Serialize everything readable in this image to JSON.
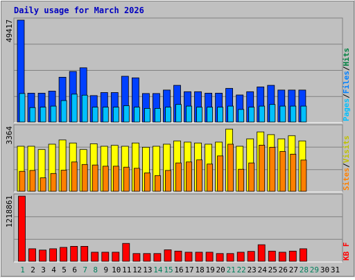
{
  "chart_data": {
    "type": "bar",
    "title": "Daily usage for March 2026",
    "days": [
      1,
      2,
      3,
      4,
      5,
      6,
      7,
      8,
      9,
      10,
      11,
      12,
      13,
      14,
      15,
      16,
      17,
      18,
      19,
      20,
      21,
      22,
      23,
      24,
      25,
      26,
      27,
      28,
      29,
      30,
      31
    ],
    "weekend_days": [
      1,
      7,
      8,
      14,
      15,
      21,
      22,
      28,
      29
    ],
    "colors": {
      "hits": "#008040",
      "files": "#0080ff",
      "pages": "#00c0ff",
      "visits": "#ffff00",
      "sites": "#ff8000",
      "kbytes": "#ff0000",
      "hits_bar": "#0040ff",
      "files_bar": "#0040ff",
      "title": "#0000c0",
      "panel": "#c0c0c0",
      "weekday_label": "#000000",
      "weekend_label": "#00805c"
    },
    "panels": [
      {
        "id": "hits-files-pages",
        "max_label": "49417",
        "ymax": 49417,
        "legend": [
          {
            "text": "Hits",
            "color": "#008040"
          },
          {
            "text": "/",
            "color": "#000000"
          },
          {
            "text": "Files",
            "color": "#0080ff"
          },
          {
            "text": "/",
            "color": "#000000"
          },
          {
            "text": "Pages",
            "color": "#00c0ff"
          }
        ],
        "series": [
          {
            "name": "Hits",
            "color": "#0040ff",
            "values": [
              49417,
              14000,
              14000,
              15000,
              21700,
              24500,
              26300,
              12800,
              14300,
              14300,
              22200,
              21400,
              13800,
              13800,
              15500,
              17800,
              14700,
              14700,
              14000,
              14000,
              16300,
              13100,
              14700,
              17000,
              17800,
              15500,
              15500,
              15500,
              0,
              0,
              0
            ]
          },
          {
            "name": "Files",
            "color": "#0040ff",
            "values": [
              0,
              0,
              0,
              0,
              0,
              0,
              0,
              0,
              0,
              0,
              0,
              0,
              0,
              0,
              0,
              0,
              0,
              0,
              0,
              0,
              0,
              0,
              0,
              0,
              0,
              0,
              0,
              0,
              0,
              0,
              0
            ]
          },
          {
            "name": "Pages",
            "color": "#00c0ff",
            "values": [
              13800,
              7000,
              7200,
              7700,
              10400,
              13500,
              13000,
              7200,
              7200,
              7200,
              7900,
              7200,
              6600,
              6600,
              7200,
              8500,
              7700,
              7200,
              7200,
              7200,
              7700,
              6100,
              7200,
              7700,
              8500,
              7700,
              7700,
              7700,
              0,
              0,
              0
            ]
          }
        ]
      },
      {
        "id": "visits-sites",
        "max_label": "3364",
        "ymax": 3364,
        "legend": [
          {
            "text": "Visits",
            "color": "#c0c000"
          },
          {
            "text": "/",
            "color": "#000000"
          },
          {
            "text": "Sites",
            "color": "#ff8000"
          }
        ],
        "series": [
          {
            "name": "Visits",
            "color": "#ffff00",
            "values": [
              2350,
              2350,
              2180,
              2460,
              2680,
              2520,
              2180,
              2480,
              2350,
              2400,
              2350,
              2520,
              2300,
              2350,
              2460,
              2630,
              2570,
              2520,
              2460,
              2570,
              3250,
              2350,
              2740,
              3100,
              2960,
              2740,
              2900,
              2630,
              0,
              0,
              0
            ]
          },
          {
            "name": "Sites",
            "color": "#ff8000",
            "values": [
              1040,
              1090,
              700,
              930,
              1100,
              1530,
              1400,
              1370,
              1310,
              1310,
              1260,
              1200,
              960,
              820,
              1090,
              1480,
              1530,
              1640,
              1420,
              1850,
              2460,
              1150,
              1480,
              2410,
              2300,
              2080,
              1940,
              1630,
              0,
              0,
              0
            ]
          }
        ]
      },
      {
        "id": "kbytes",
        "max_label": "1218861",
        "ymax": 1218861,
        "legend": [
          {
            "text": "KB F",
            "color": "#ff0000"
          }
        ],
        "series": [
          {
            "name": "KB F",
            "color": "#ff0000",
            "values": [
              1218861,
              235000,
              210000,
              235000,
              260000,
              280000,
              280000,
              170000,
              170000,
              170000,
              335000,
              145000,
              145000,
              145000,
              215000,
              190000,
              170000,
              170000,
              170000,
              145000,
              145000,
              170000,
              185000,
              310000,
              190000,
              170000,
              190000,
              235000,
              0,
              0,
              0
            ]
          }
        ]
      }
    ]
  }
}
